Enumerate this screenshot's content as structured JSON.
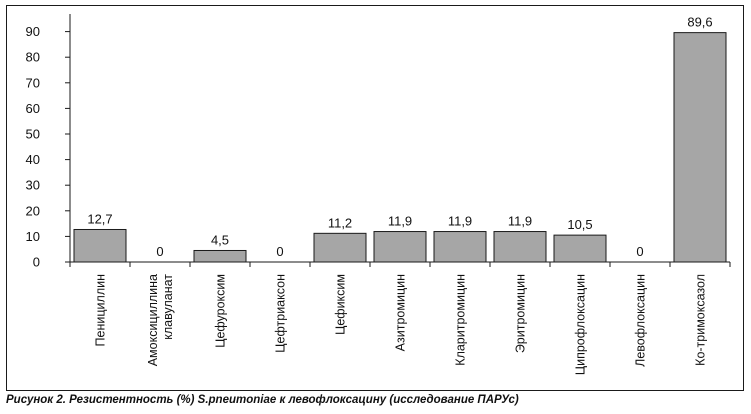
{
  "chart_data": {
    "type": "bar",
    "categories": [
      [
        "Пенициллин"
      ],
      [
        "Амоксициллина",
        "клавуланат"
      ],
      [
        "Цефуроксим"
      ],
      [
        "Цефтриаксон"
      ],
      [
        "Цефиксим"
      ],
      [
        "Азитромицин"
      ],
      [
        "Кларитромицин"
      ],
      [
        "Эритромицин"
      ],
      [
        "Ципрофлоксацин"
      ],
      [
        "Левофлоксацин"
      ],
      [
        "Ко-тримоксазол"
      ]
    ],
    "values": [
      12.7,
      0,
      4.5,
      0,
      11.2,
      11.9,
      11.9,
      11.9,
      10.5,
      0,
      89.6
    ],
    "value_labels": [
      "12,7",
      "0",
      "4,5",
      "0",
      "11,2",
      "11,9",
      "11,9",
      "11,9",
      "10,5",
      "0",
      "89,6"
    ],
    "y_ticks": [
      0,
      10,
      20,
      30,
      40,
      50,
      60,
      70,
      80,
      90
    ],
    "ylim": [
      0,
      100
    ],
    "grid": false,
    "colors": {
      "bar_fill": "#a6a6a6",
      "bar_stroke": "#1a1a1a",
      "axis": "#1a1a1a",
      "frame": "#1a1a1a"
    }
  },
  "caption": "Рисунок 2. Резистентность (%) S.pneumoniae к левофлоксацину (исследование ПАРУс)"
}
